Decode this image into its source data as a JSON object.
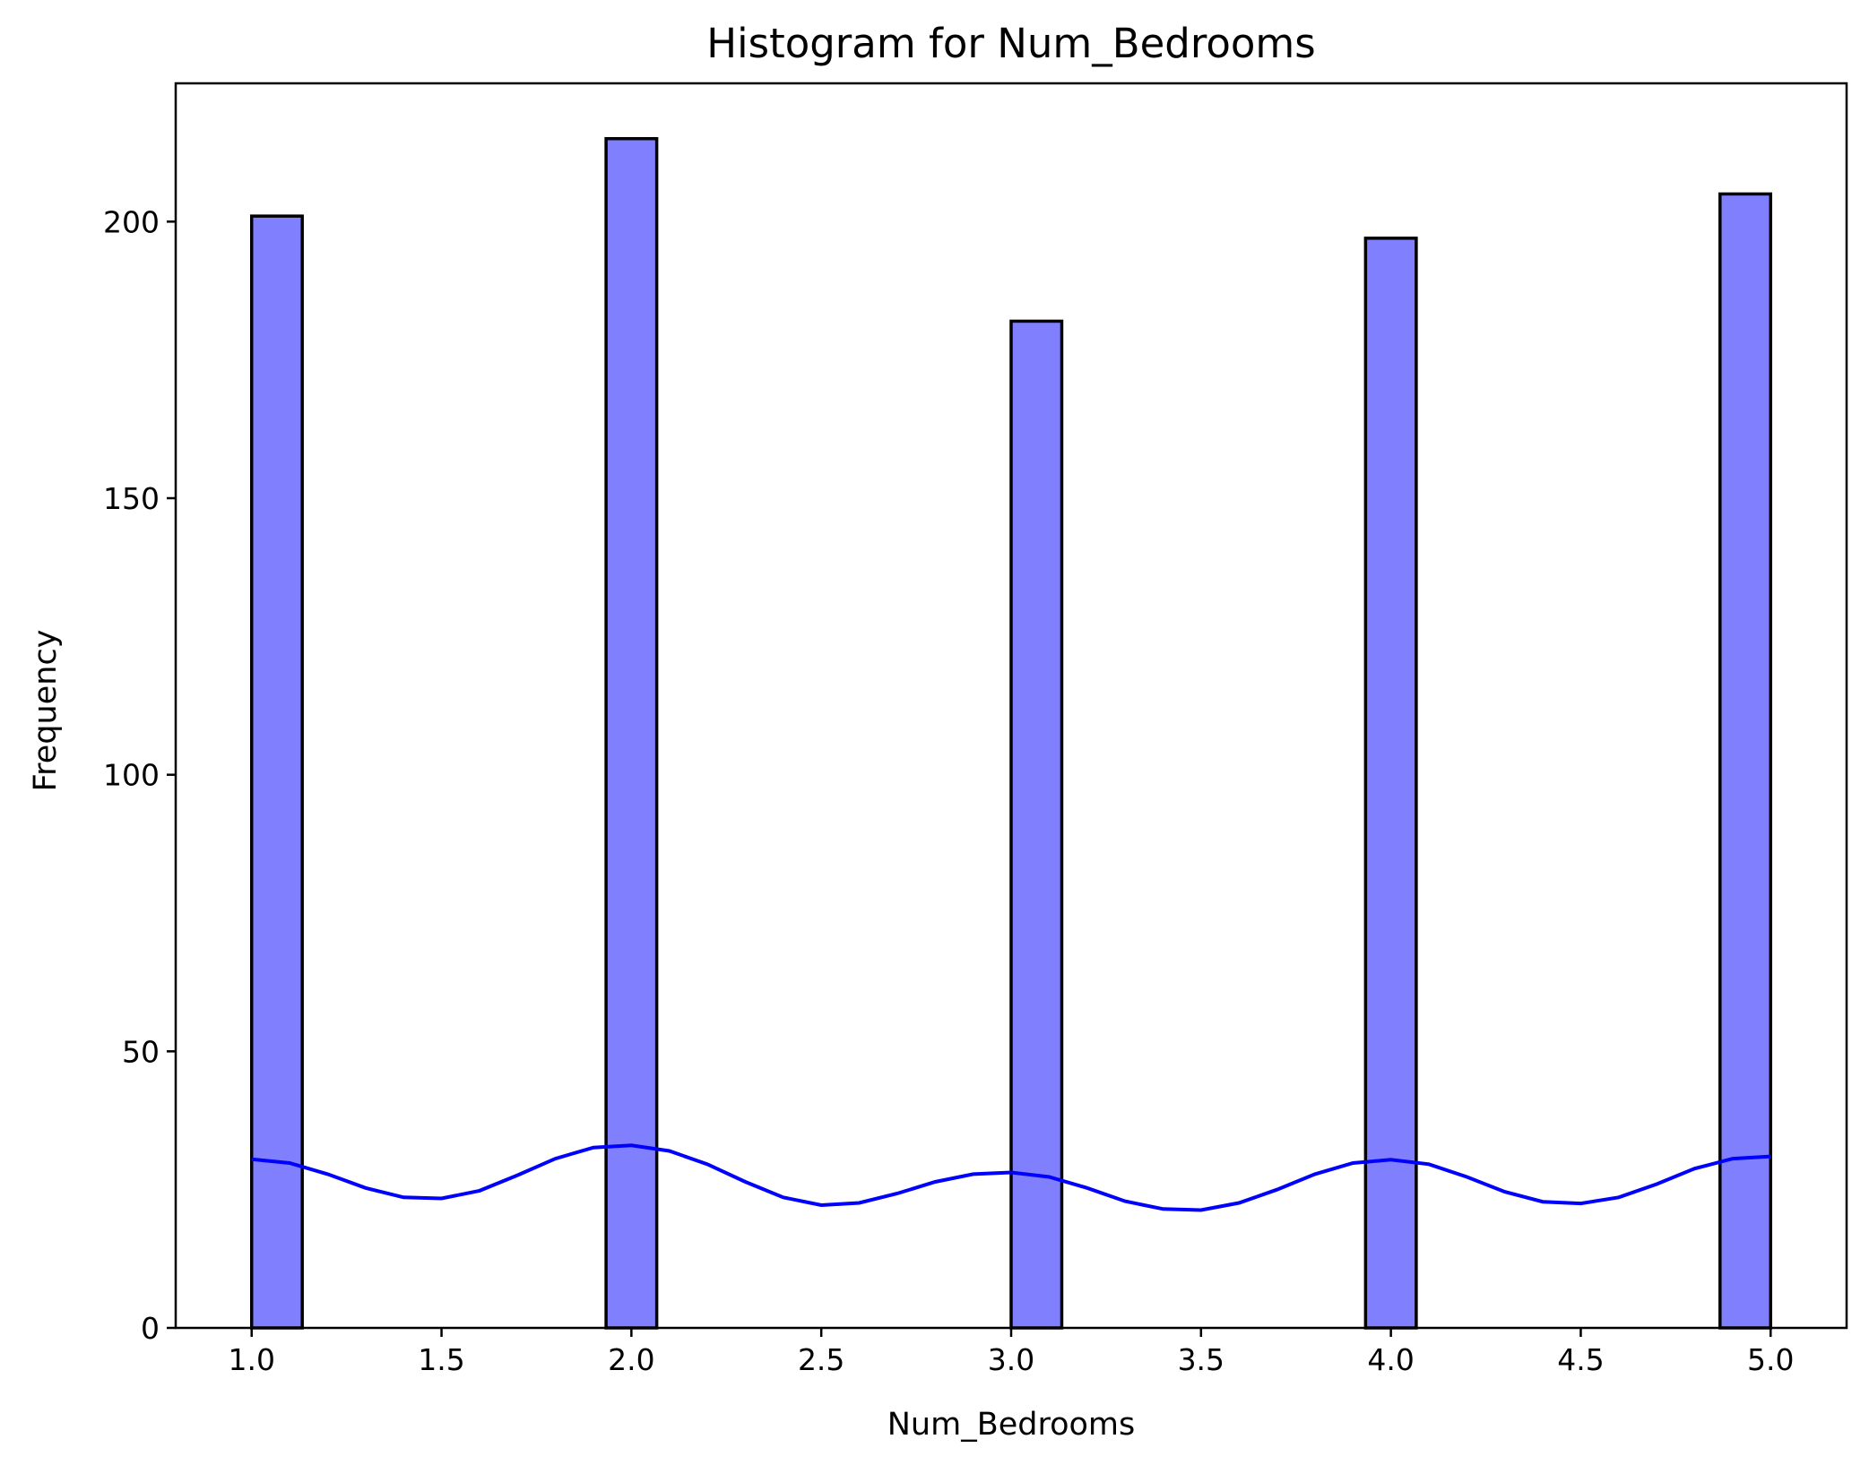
{
  "chart_data": {
    "type": "bar",
    "title": "Histogram for Num_Bedrooms",
    "xlabel": "Num_Bedrooms",
    "ylabel": "Frequency",
    "xlim": [
      0.8,
      5.2
    ],
    "ylim": [
      0,
      225
    ],
    "xticks": [
      1.0,
      1.5,
      2.0,
      2.5,
      3.0,
      3.5,
      4.0,
      4.5,
      5.0
    ],
    "xtick_labels": [
      "1.0",
      "1.5",
      "2.0",
      "2.5",
      "3.0",
      "3.5",
      "4.0",
      "4.5",
      "5.0"
    ],
    "yticks": [
      0,
      50,
      100,
      150,
      200
    ],
    "ytick_labels": [
      "0",
      "50",
      "100",
      "150",
      "200"
    ],
    "bars": [
      {
        "x_start": 1.0,
        "x_end": 1.1333,
        "value": 201
      },
      {
        "x_start": 1.9333,
        "x_end": 2.0667,
        "value": 215
      },
      {
        "x_start": 3.0,
        "x_end": 3.1333,
        "value": 182
      },
      {
        "x_start": 3.9333,
        "x_end": 4.0667,
        "value": 197
      },
      {
        "x_start": 4.8667,
        "x_end": 5.0,
        "value": 205
      }
    ],
    "kde": {
      "x": [
        1.0,
        1.1,
        1.2,
        1.3,
        1.4,
        1.5,
        1.6,
        1.7,
        1.8,
        1.9,
        2.0,
        2.1,
        2.2,
        2.3,
        2.4,
        2.5,
        2.6,
        2.7,
        2.8,
        2.9,
        3.0,
        3.1,
        3.2,
        3.3,
        3.4,
        3.5,
        3.6,
        3.7,
        3.8,
        3.9,
        4.0,
        4.1,
        4.2,
        4.3,
        4.4,
        4.5,
        4.6,
        4.7,
        4.8,
        4.9,
        5.0
      ],
      "y": [
        30.5,
        29.8,
        27.8,
        25.3,
        23.6,
        23.4,
        24.8,
        27.6,
        30.6,
        32.6,
        33.0,
        32.0,
        29.6,
        26.4,
        23.6,
        22.2,
        22.6,
        24.3,
        26.4,
        27.8,
        28.1,
        27.3,
        25.3,
        22.9,
        21.5,
        21.3,
        22.6,
        25.0,
        27.8,
        29.8,
        30.4,
        29.6,
        27.3,
        24.6,
        22.8,
        22.5,
        23.6,
        26.0,
        28.8,
        30.6,
        31.0
      ]
    },
    "bar_color": "#8080ff",
    "bar_edge_color": "#000000",
    "kde_color": "#0000ff",
    "grid": false,
    "legend": false
  }
}
